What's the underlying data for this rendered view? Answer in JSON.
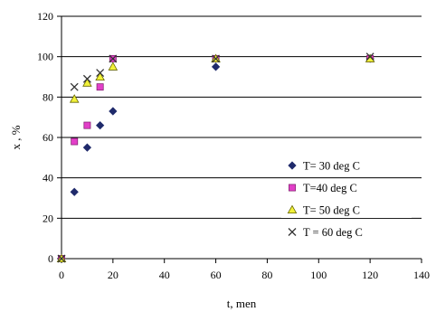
{
  "chart_data": {
    "type": "scatter",
    "title": "",
    "xlabel": "t, men",
    "ylabel": "x , %",
    "xlim": [
      0,
      140
    ],
    "ylim": [
      0,
      120
    ],
    "xticks": [
      0,
      20,
      40,
      60,
      80,
      100,
      120,
      140
    ],
    "yticks": [
      0,
      20,
      40,
      60,
      80,
      100,
      120
    ],
    "grid": "horizontal",
    "legend_position": "bottom-right",
    "series": [
      {
        "name": "T= 30 deg C",
        "marker": "diamond",
        "color": "#1f2a6b",
        "points": [
          [
            0,
            0
          ],
          [
            5,
            33
          ],
          [
            10,
            55
          ],
          [
            15,
            66
          ],
          [
            20,
            73
          ],
          [
            60,
            95
          ],
          [
            120,
            99
          ]
        ]
      },
      {
        "name": "T=40 deg C",
        "marker": "square",
        "color": "#e23fc8",
        "points": [
          [
            0,
            0
          ],
          [
            5,
            58
          ],
          [
            10,
            66
          ],
          [
            15,
            85
          ],
          [
            20,
            99
          ],
          [
            60,
            99
          ],
          [
            120,
            99
          ]
        ]
      },
      {
        "name": "T= 50 deg C",
        "marker": "triangle",
        "color": "#f2f23a",
        "points": [
          [
            0,
            0
          ],
          [
            5,
            79
          ],
          [
            10,
            87
          ],
          [
            15,
            90
          ],
          [
            20,
            95
          ],
          [
            60,
            99
          ],
          [
            120,
            99
          ]
        ]
      },
      {
        "name": "T = 60 deg C",
        "marker": "x",
        "color": "#333333",
        "points": [
          [
            0,
            0
          ],
          [
            5,
            85
          ],
          [
            10,
            89
          ],
          [
            15,
            92
          ],
          [
            20,
            99
          ],
          [
            60,
            99
          ],
          [
            120,
            100
          ]
        ]
      }
    ]
  }
}
